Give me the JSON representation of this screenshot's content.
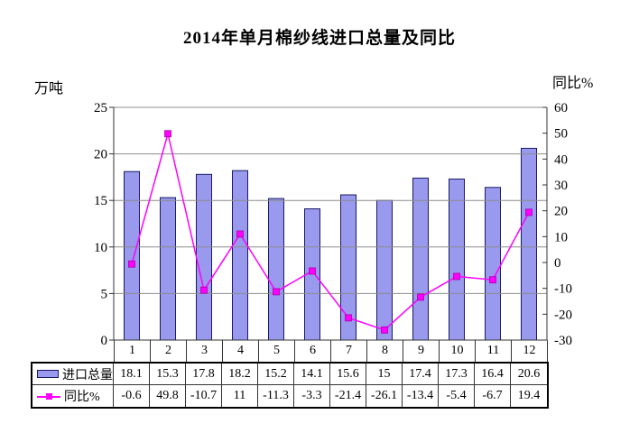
{
  "chart_data": {
    "type": "bar+line",
    "title": "2014年单月棉纱线进口总量及同比",
    "left_axis": {
      "label": "万吨",
      "min": 0,
      "max": 25,
      "ticks": [
        0,
        5,
        10,
        15,
        20,
        25
      ]
    },
    "right_axis": {
      "label": "同比%",
      "min": -30,
      "max": 60,
      "ticks": [
        -30,
        -20,
        -10,
        0,
        10,
        20,
        30,
        40,
        50,
        60
      ]
    },
    "categories": [
      "1",
      "2",
      "3",
      "4",
      "5",
      "6",
      "7",
      "8",
      "9",
      "10",
      "11",
      "12"
    ],
    "series": [
      {
        "name": "进口总量",
        "type": "bar",
        "color": "#9999EE",
        "border_color": "#1a1a66",
        "values": [
          18.1,
          15.3,
          17.8,
          18.2,
          15.2,
          14.1,
          15.6,
          15,
          17.4,
          17.3,
          16.4,
          20.6
        ]
      },
      {
        "name": "同比%",
        "type": "line",
        "color": "#FF00FF",
        "marker_color": "#FF00FF",
        "values": [
          -0.6,
          49.8,
          -10.7,
          11,
          -11.3,
          -3.3,
          -21.4,
          -26.1,
          -13.4,
          -5.4,
          -6.7,
          19.4
        ]
      }
    ],
    "grid_color": "#8c8c8c",
    "axis_color": "#333333",
    "grid_on": true,
    "legend_position": "table-left"
  }
}
